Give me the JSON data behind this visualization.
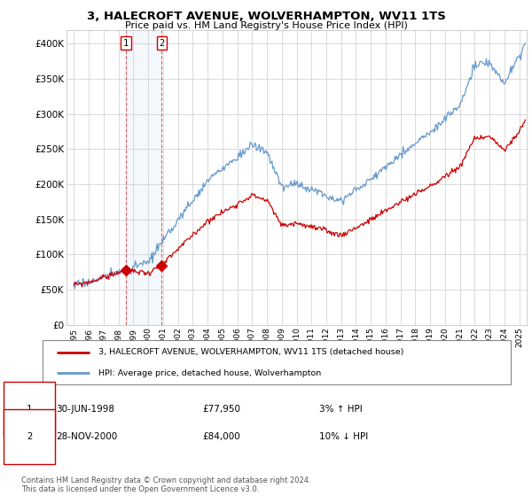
{
  "title": "3, HALECROFT AVENUE, WOLVERHAMPTON, WV11 1TS",
  "subtitle": "Price paid vs. HM Land Registry's House Price Index (HPI)",
  "ylabel_ticks": [
    "£0",
    "£50K",
    "£100K",
    "£150K",
    "£200K",
    "£250K",
    "£300K",
    "£350K",
    "£400K"
  ],
  "ytick_values": [
    0,
    50000,
    100000,
    150000,
    200000,
    250000,
    300000,
    350000,
    400000
  ],
  "ylim": [
    0,
    420000
  ],
  "xlim_start": 1994.5,
  "xlim_end": 2025.5,
  "sale1": {
    "date": 1998.5,
    "price": 77950,
    "label": "1",
    "date_str": "30-JUN-1998",
    "price_str": "£77,950",
    "hpi_str": "3% ↑ HPI"
  },
  "sale2": {
    "date": 2000.917,
    "price": 84000,
    "label": "2",
    "date_str": "28-NOV-2000",
    "price_str": "£84,000",
    "hpi_str": "10% ↓ HPI"
  },
  "property_color": "#cc0000",
  "hpi_color": "#6699cc",
  "background_color": "#ffffff",
  "legend_entry1": "3, HALECROFT AVENUE, WOLVERHAMPTON, WV11 1TS (detached house)",
  "legend_entry2": "HPI: Average price, detached house, Wolverhampton",
  "footer": "Contains HM Land Registry data © Crown copyright and database right 2024.\nThis data is licensed under the Open Government Licence v3.0.",
  "xtick_years": [
    1995,
    1996,
    1997,
    1998,
    1999,
    2000,
    2001,
    2002,
    2003,
    2004,
    2005,
    2006,
    2007,
    2008,
    2009,
    2010,
    2011,
    2012,
    2013,
    2014,
    2015,
    2016,
    2017,
    2018,
    2019,
    2020,
    2021,
    2022,
    2023,
    2024,
    2025
  ],
  "hpi_seed": 17,
  "prop_seed": 99,
  "hpi_noise_scale": 3000,
  "prop_noise_scale": 2000
}
